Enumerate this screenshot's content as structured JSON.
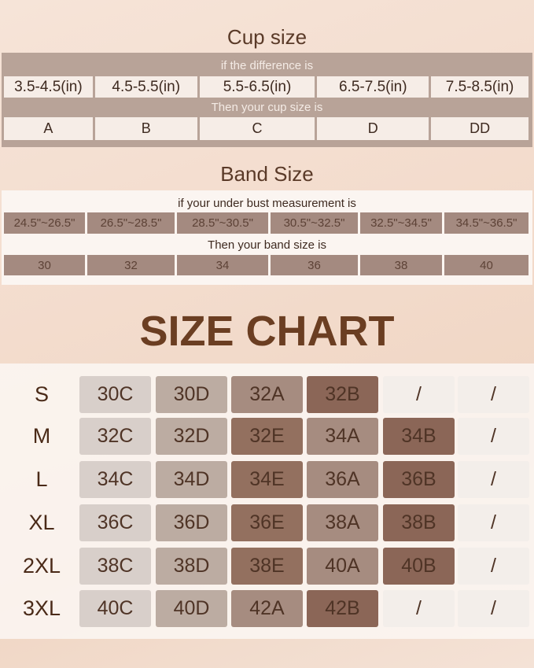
{
  "cup": {
    "title": "Cup size",
    "prompt": "if the difference is",
    "ranges": [
      "3.5-4.5(in)",
      "4.5-5.5(in)",
      "5.5-6.5(in)",
      "6.5-7.5(in)",
      "7.5-8.5(in)"
    ],
    "result_prompt": "Then your cup size is",
    "sizes": [
      "A",
      "B",
      "C",
      "D",
      "DD"
    ]
  },
  "band": {
    "title": "Band Size",
    "prompt": "if your under bust measurement is",
    "ranges": [
      "24.5\"~26.5\"",
      "26.5\"~28.5\"",
      "28.5\"~30.5\"",
      "30.5\"~32.5\"",
      "32.5\"~34.5\"",
      "34.5\"~36.5\""
    ],
    "result_prompt": "Then your band size is",
    "sizes": [
      "30",
      "32",
      "34",
      "36",
      "38",
      "40"
    ]
  },
  "size_chart": {
    "title": "SIZE CHART",
    "rows": [
      {
        "label": "S",
        "cells": [
          "30C",
          "30D",
          "32A",
          "32B",
          "/",
          "/"
        ],
        "shades": [
          1,
          2,
          3,
          5,
          0,
          0
        ]
      },
      {
        "label": "M",
        "cells": [
          "32C",
          "32D",
          "32E",
          "34A",
          "34B",
          "/"
        ],
        "shades": [
          1,
          2,
          4,
          3,
          5,
          0
        ]
      },
      {
        "label": "L",
        "cells": [
          "34C",
          "34D",
          "34E",
          "36A",
          "36B",
          "/"
        ],
        "shades": [
          1,
          2,
          4,
          3,
          5,
          0
        ]
      },
      {
        "label": "XL",
        "cells": [
          "36C",
          "36D",
          "36E",
          "38A",
          "38B",
          "/"
        ],
        "shades": [
          1,
          2,
          4,
          3,
          5,
          0
        ]
      },
      {
        "label": "2XL",
        "cells": [
          "38C",
          "38D",
          "38E",
          "40A",
          "40B",
          "/"
        ],
        "shades": [
          1,
          2,
          4,
          3,
          5,
          0
        ]
      },
      {
        "label": "3XL",
        "cells": [
          "40C",
          "40D",
          "42A",
          "42B",
          "/",
          "/"
        ],
        "shades": [
          1,
          2,
          3,
          5,
          0,
          0
        ]
      }
    ]
  },
  "colors": {
    "title": "#5a3a28",
    "cup_box": "#b8a398",
    "band_cell": "#a48a80",
    "darkest_cell": "#8b6657"
  }
}
